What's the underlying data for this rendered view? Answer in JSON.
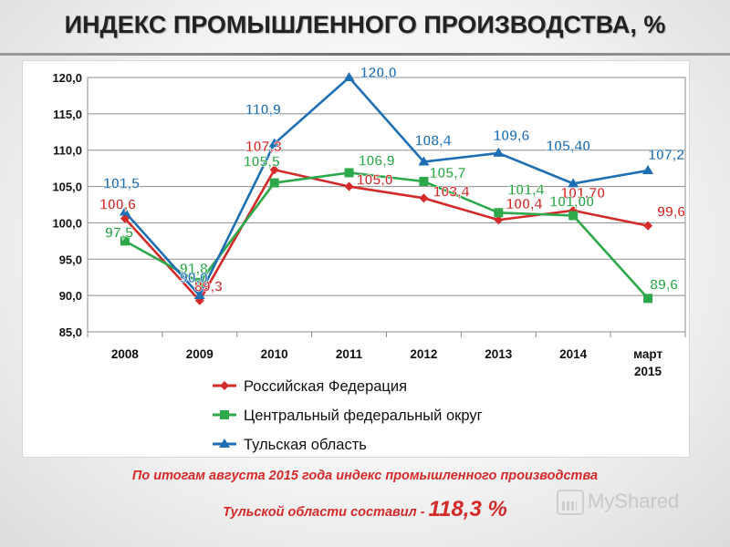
{
  "title": "ИНДЕКС ПРОМЫШЛЕННОГО ПРОИЗВОДСТВА, %",
  "colors": {
    "rf": "#d42a2a",
    "cfo": "#2da84a",
    "tula": "#1f6fb5"
  },
  "chart_data": {
    "type": "line",
    "categories": [
      "2008",
      "2009",
      "2010",
      "2011",
      "2012",
      "2013",
      "2014",
      "март 2015"
    ],
    "category_lines": [
      [
        "2008"
      ],
      [
        "2009"
      ],
      [
        "2010"
      ],
      [
        "2011"
      ],
      [
        "2012"
      ],
      [
        "2013"
      ],
      [
        "2014"
      ],
      [
        "март",
        "2015"
      ]
    ],
    "ylim": [
      85,
      120
    ],
    "yticks": [
      "85,0",
      "90,0",
      "95,0",
      "100,0",
      "105,0",
      "110,0",
      "115,0",
      "120,0"
    ],
    "grid": true,
    "legend_position": "bottom",
    "series": [
      {
        "name": "Российская Федерация",
        "key": "rf",
        "marker": "diamond",
        "values": [
          100.6,
          89.3,
          107.3,
          105.0,
          103.4,
          100.4,
          101.7,
          99.6
        ],
        "labels": [
          "100,6",
          "89,3",
          "107,3",
          "105,0",
          "103,4",
          "100,4",
          "101,70",
          "99,6"
        ]
      },
      {
        "name": "Центральный федеральный округ",
        "key": "cfo",
        "marker": "square",
        "values": [
          97.5,
          91.8,
          105.5,
          106.9,
          105.7,
          101.4,
          101.0,
          89.6
        ],
        "labels": [
          "97,5",
          "91,8",
          "105,5",
          "106,9",
          "105,7",
          "101,4",
          "101,00",
          "89,6"
        ]
      },
      {
        "name": "Тульская область",
        "key": "tula",
        "marker": "triangle",
        "values": [
          101.5,
          90.0,
          110.9,
          120.0,
          108.4,
          109.6,
          105.4,
          107.2
        ],
        "labels": [
          "101,5",
          "90,0",
          "110,9",
          "120,0",
          "108,4",
          "109,6",
          "105,40",
          "107,2"
        ]
      }
    ]
  },
  "footer": {
    "line1": "По итогам августа 2015 года индекс промышленного производства",
    "line2": "Тульской области составил -",
    "value": "118,3 %"
  },
  "watermark": "MyShared"
}
